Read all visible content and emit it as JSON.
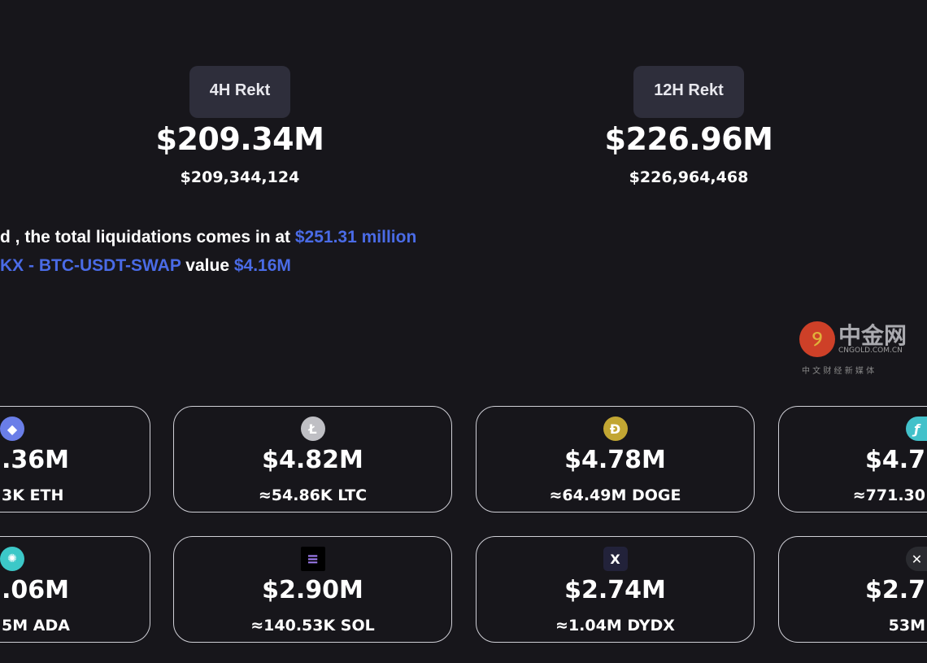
{
  "stats": [
    {
      "label": "4H Rekt",
      "value": "$209.34M",
      "exact": "$209,344,124"
    },
    {
      "label": "12H Rekt",
      "value": "$226.96M",
      "exact": "$226,964,468"
    }
  ],
  "summary": {
    "line1_text": "d , the total liquidations comes in at",
    "line1_amount": "$251.31 million",
    "line2_pair": "KX - BTC-USDT-SWAP",
    "line2_text": "value",
    "line2_amount": "$4.16M",
    "accent": "#4a6be6"
  },
  "coins": [
    {
      "icon": "ethereum-icon",
      "value": ".36M",
      "amount": "3K ETH"
    },
    {
      "icon": "litecoin-icon",
      "value": "$4.82M",
      "amount": "≈54.86K LTC"
    },
    {
      "icon": "dogecoin-icon",
      "value": "$4.78M",
      "amount": "≈64.49M DOGE"
    },
    {
      "icon": "filecoin-icon",
      "value": "$4.7",
      "amount": "≈771.30"
    },
    {
      "icon": "cardano-icon",
      "value": ".06M",
      "amount": "5M ADA"
    },
    {
      "icon": "solana-icon",
      "value": "$2.90M",
      "amount": "≈140.53K SOL"
    },
    {
      "icon": "dydx-icon",
      "value": "$2.74M",
      "amount": "≈1.04M DYDX"
    },
    {
      "icon": "xrp-icon",
      "value": "$2.7",
      "amount": "53M"
    }
  ],
  "watermark": {
    "name": "中金网",
    "domain": "CNGOLD.COM.CN",
    "tagline": "中 文 财 经 新 媒 体"
  }
}
